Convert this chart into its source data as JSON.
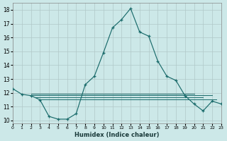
{
  "title": "",
  "xlabel": "Humidex (Indice chaleur)",
  "bg_color": "#cce8e8",
  "line_color": "#1a6b6b",
  "x_main": [
    0,
    1,
    2,
    3,
    4,
    5,
    6,
    7,
    8,
    9,
    10,
    11,
    12,
    13,
    14,
    15,
    16,
    17,
    18,
    19,
    20,
    21,
    22,
    23
  ],
  "y_main": [
    12.3,
    11.9,
    11.8,
    11.5,
    10.3,
    10.1,
    10.1,
    10.5,
    12.6,
    13.2,
    14.9,
    16.7,
    17.3,
    18.1,
    16.4,
    16.1,
    14.3,
    13.2,
    12.9,
    11.8,
    11.2,
    10.7,
    11.4,
    11.2
  ],
  "flat_lines": [
    {
      "x_start": 2.0,
      "x_end": 22.0,
      "y": 11.85
    },
    {
      "x_start": 2.0,
      "x_end": 20.0,
      "y": 11.95
    },
    {
      "x_start": 2.5,
      "x_end": 21.0,
      "y": 11.7
    },
    {
      "x_start": 3.0,
      "x_end": 22.5,
      "y": 11.55
    }
  ],
  "xlim": [
    0,
    23
  ],
  "ylim": [
    9.8,
    18.5
  ],
  "yticks": [
    10,
    11,
    12,
    13,
    14,
    15,
    16,
    17,
    18
  ],
  "xticks": [
    0,
    1,
    2,
    3,
    4,
    5,
    6,
    7,
    8,
    9,
    10,
    11,
    12,
    13,
    14,
    15,
    16,
    17,
    18,
    19,
    20,
    21,
    22,
    23
  ],
  "grid_color": "#b0c8c8",
  "marker": "+"
}
